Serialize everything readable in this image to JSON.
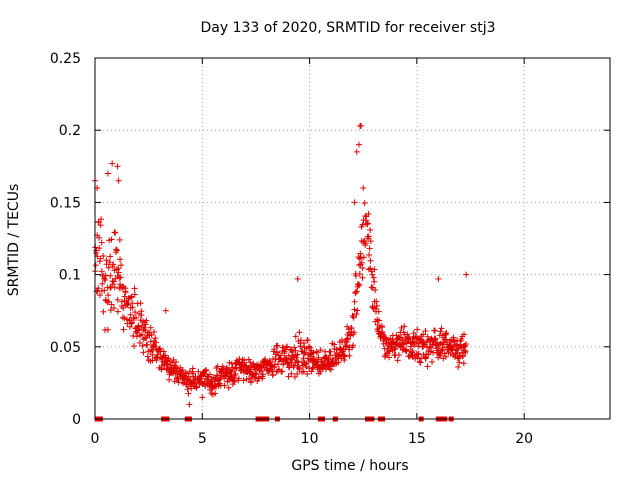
{
  "chart_data": {
    "type": "scatter",
    "title": "Day 133 of 2020, SRMTID for receiver stj3",
    "xlabel": "GPS time / hours",
    "ylabel": "SRMTID / TECUs",
    "xlim": [
      0,
      24
    ],
    "ylim": [
      0,
      0.25
    ],
    "x_ticks": [
      0,
      5,
      10,
      15,
      20
    ],
    "y_ticks": [
      0,
      0.05,
      0.1,
      0.15,
      0.2,
      0.25
    ],
    "x_tick_labels": [
      "0",
      "5",
      "10",
      "15",
      "20"
    ],
    "y_tick_labels": [
      "0",
      "0.05",
      "0.1",
      "0.15",
      "0.2",
      "0.25"
    ],
    "grid": true,
    "marker": "plus",
    "color": "#e00000",
    "envelope": {
      "description": "approximate median and spread of the dense point cloud (hours, TECU)",
      "x": [
        0.0,
        0.2,
        0.5,
        0.8,
        1.0,
        1.2,
        1.5,
        2.0,
        2.5,
        3.0,
        3.5,
        4.0,
        4.5,
        5.0,
        5.5,
        6.0,
        6.5,
        7.0,
        7.5,
        8.0,
        8.5,
        9.0,
        9.5,
        10.0,
        10.5,
        11.0,
        11.5,
        12.0,
        12.3,
        12.6,
        12.8,
        13.0,
        13.3,
        13.6,
        14.0,
        14.5,
        15.0,
        15.5,
        16.0,
        16.5,
        17.0,
        17.3
      ],
      "median": [
        0.12,
        0.11,
        0.09,
        0.1,
        0.11,
        0.09,
        0.08,
        0.065,
        0.055,
        0.045,
        0.035,
        0.03,
        0.025,
        0.028,
        0.026,
        0.03,
        0.033,
        0.035,
        0.034,
        0.036,
        0.04,
        0.042,
        0.045,
        0.042,
        0.038,
        0.04,
        0.045,
        0.06,
        0.1,
        0.13,
        0.12,
        0.085,
        0.06,
        0.05,
        0.05,
        0.052,
        0.05,
        0.048,
        0.052,
        0.05,
        0.045,
        0.055
      ],
      "spread": [
        0.05,
        0.05,
        0.04,
        0.05,
        0.05,
        0.04,
        0.03,
        0.025,
        0.02,
        0.015,
        0.012,
        0.012,
        0.012,
        0.012,
        0.012,
        0.012,
        0.012,
        0.012,
        0.012,
        0.012,
        0.015,
        0.02,
        0.025,
        0.015,
        0.012,
        0.012,
        0.015,
        0.02,
        0.035,
        0.04,
        0.04,
        0.025,
        0.015,
        0.012,
        0.015,
        0.015,
        0.015,
        0.015,
        0.02,
        0.015,
        0.015,
        0.02
      ]
    },
    "outliers": [
      {
        "x": 0.0,
        "y": 0.165
      },
      {
        "x": 0.1,
        "y": 0.16
      },
      {
        "x": 0.8,
        "y": 0.177
      },
      {
        "x": 1.05,
        "y": 0.175
      },
      {
        "x": 1.1,
        "y": 0.165
      },
      {
        "x": 0.6,
        "y": 0.17
      },
      {
        "x": 9.45,
        "y": 0.097
      },
      {
        "x": 12.35,
        "y": 0.203
      },
      {
        "x": 12.4,
        "y": 0.203
      },
      {
        "x": 12.3,
        "y": 0.19
      },
      {
        "x": 12.2,
        "y": 0.185
      },
      {
        "x": 12.5,
        "y": 0.16
      },
      {
        "x": 12.1,
        "y": 0.15
      },
      {
        "x": 16.0,
        "y": 0.097
      },
      {
        "x": 17.3,
        "y": 0.1
      },
      {
        "x": 3.3,
        "y": 0.075
      },
      {
        "x": 4.4,
        "y": 0.01
      },
      {
        "x": 5.0,
        "y": 0.015
      }
    ],
    "zero_markers": [
      0.1,
      0.15,
      0.2,
      0.25,
      3.2,
      3.35,
      4.3,
      4.4,
      7.6,
      7.7,
      7.9,
      8.0,
      8.5,
      10.5,
      10.6,
      11.2,
      12.7,
      12.9,
      13.3,
      13.4,
      15.2,
      16.0,
      16.1,
      16.3,
      16.6
    ]
  }
}
